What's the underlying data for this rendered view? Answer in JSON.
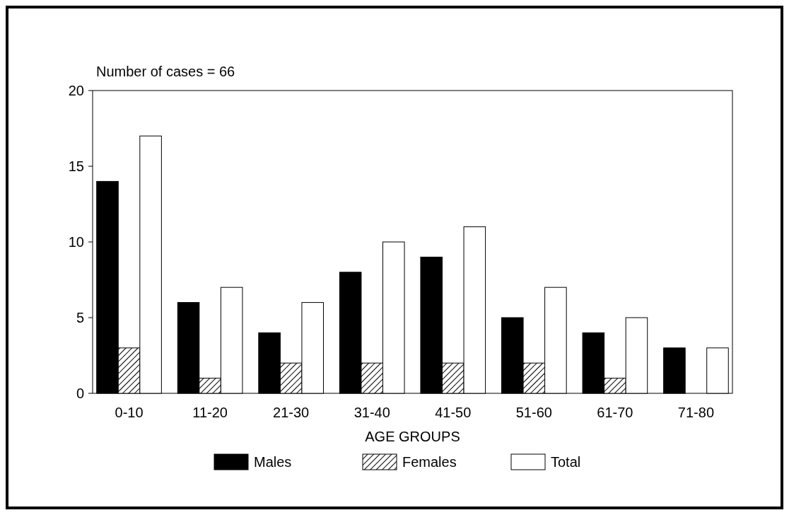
{
  "chart_data": {
    "type": "bar",
    "title": "Number of cases = 66",
    "xlabel": "AGE GROUPS",
    "categories": [
      "0-10",
      "11-20",
      "21-30",
      "31-40",
      "41-50",
      "51-60",
      "61-70",
      "71-80"
    ],
    "series": [
      {
        "name": "Males",
        "color": "#000000",
        "values": [
          14,
          6,
          4,
          8,
          9,
          5,
          4,
          3
        ]
      },
      {
        "name": "Females",
        "color": "#000000",
        "values": [
          3,
          1,
          2,
          2,
          2,
          2,
          1,
          0
        ]
      },
      {
        "name": "Total",
        "color": "#ffffff",
        "values": [
          17,
          7,
          6,
          10,
          11,
          7,
          5,
          3
        ]
      }
    ],
    "ylim": [
      0,
      20
    ],
    "yticks": [
      0,
      5,
      10,
      15,
      20
    ],
    "grid": false,
    "legend": "bottom"
  }
}
